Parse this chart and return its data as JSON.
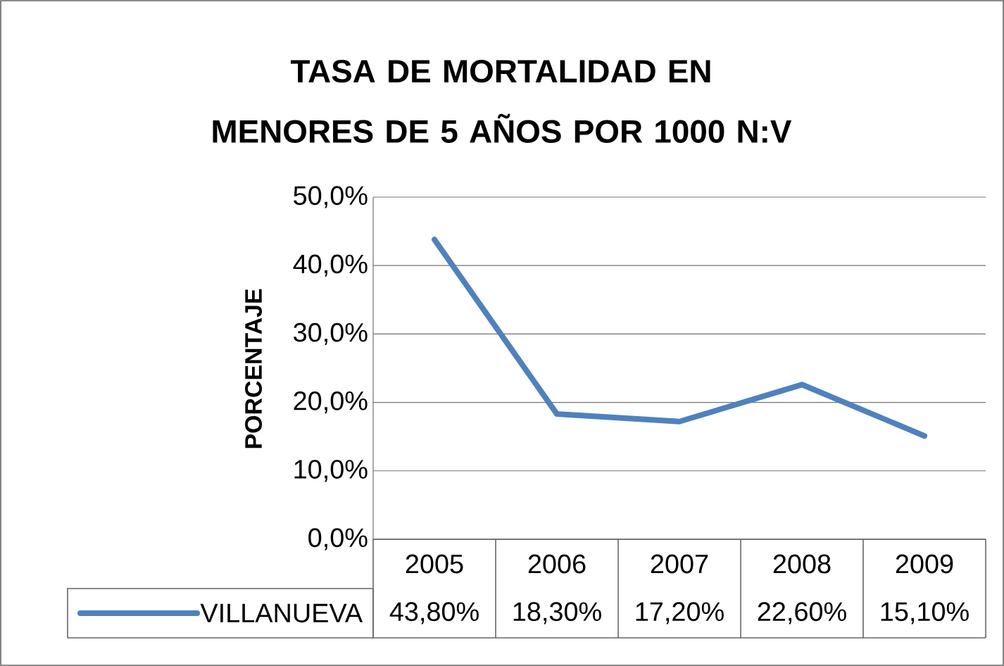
{
  "chart_data": {
    "type": "line",
    "title": "TASA DE MORTALIDAD EN MENORES DE 5 AÑOS POR 1000 N:V",
    "ylabel": "PORCENTAJE",
    "categories": [
      "2005",
      "2006",
      "2007",
      "2008",
      "2009"
    ],
    "series": [
      {
        "name": "VILLANUEVA",
        "color": "#4f81bd",
        "values": [
          43.8,
          18.3,
          17.2,
          22.6,
          15.1
        ],
        "value_labels": [
          "43,80%",
          "18,30%",
          "17,20%",
          "22,60%",
          "15,10%"
        ]
      }
    ],
    "ylim": [
      0,
      50
    ],
    "yticks": [
      {
        "value": 0,
        "label": "0,0%"
      },
      {
        "value": 10,
        "label": "10,0%"
      },
      {
        "value": 20,
        "label": "20,0%"
      },
      {
        "value": 30,
        "label": "30,0%"
      },
      {
        "value": 40,
        "label": "40,0%"
      },
      {
        "value": 50,
        "label": "50,0%"
      }
    ],
    "grid": "y",
    "legend": "bottom"
  }
}
